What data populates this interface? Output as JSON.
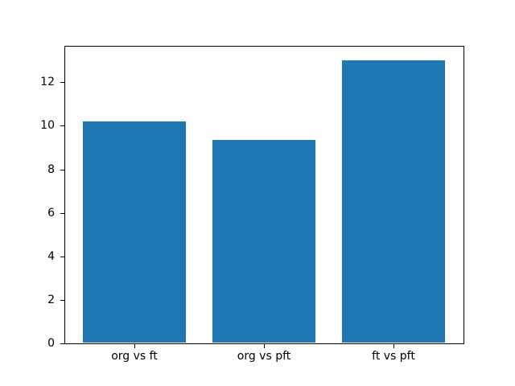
{
  "figure": {
    "background_color": "#ffffff",
    "text_color": "#000000",
    "spine_color": "#000000"
  },
  "chart_data": {
    "type": "bar",
    "categories": [
      "org vs ft",
      "org vs pft",
      "ft vs pft"
    ],
    "values": [
      10.2,
      9.35,
      13.0
    ],
    "title": "",
    "xlabel": "",
    "ylabel": "",
    "ylim": [
      0,
      13.65
    ],
    "yticks": [
      0,
      2,
      4,
      6,
      8,
      10,
      12
    ],
    "bar_color": "#1f77b4",
    "bar_width_fraction": 0.8,
    "grid": false,
    "legend_position": "none"
  }
}
